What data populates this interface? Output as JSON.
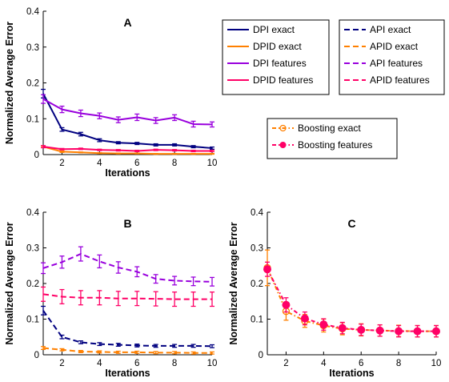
{
  "chart_data": [
    {
      "type": "line",
      "title": "A",
      "xlabel": "Iterations",
      "ylabel": "Normalized Average Error",
      "xlim": [
        1,
        10
      ],
      "ylim": [
        0,
        0.4
      ],
      "xticks": [
        2,
        4,
        6,
        8,
        10
      ],
      "yticks": [
        0,
        0.1,
        0.2,
        0.3,
        0.4
      ],
      "x": [
        1,
        2,
        3,
        4,
        5,
        6,
        7,
        8,
        9,
        10
      ],
      "series": [
        {
          "name": "DPI exact",
          "color": "#000080",
          "dash": "solid",
          "marker": "none",
          "values": [
            0.17,
            0.07,
            0.057,
            0.04,
            0.033,
            0.031,
            0.027,
            0.027,
            0.022,
            0.018
          ],
          "err": [
            0.012,
            0.005,
            0.005,
            0.004,
            0.003,
            0.003,
            0.003,
            0.003,
            0.003,
            0.003
          ]
        },
        {
          "name": "DPID exact",
          "color": "#ff8000",
          "dash": "solid",
          "marker": "none",
          "values": [
            0.022,
            0.008,
            0.006,
            0.004,
            0.003,
            0.003,
            0.002,
            0.002,
            0.002,
            0.002
          ],
          "err": [
            0.002,
            0.002,
            0.001,
            0.001,
            0.001,
            0.001,
            0.001,
            0.001,
            0.001,
            0.001
          ]
        },
        {
          "name": "DPI features",
          "color": "#9900dd",
          "dash": "solid",
          "marker": "none",
          "values": [
            0.155,
            0.126,
            0.115,
            0.108,
            0.097,
            0.104,
            0.095,
            0.103,
            0.085,
            0.084
          ],
          "err": [
            0.012,
            0.009,
            0.009,
            0.008,
            0.008,
            0.009,
            0.008,
            0.008,
            0.008,
            0.007
          ]
        },
        {
          "name": "DPID features",
          "color": "#ff0066",
          "dash": "solid",
          "marker": "none",
          "values": [
            0.022,
            0.015,
            0.016,
            0.013,
            0.012,
            0.01,
            0.013,
            0.012,
            0.01,
            0.01
          ],
          "err": [
            0.003,
            0.002,
            0.002,
            0.002,
            0.002,
            0.002,
            0.002,
            0.002,
            0.002,
            0.002
          ]
        }
      ]
    },
    {
      "type": "line",
      "title": "B",
      "xlabel": "Iterations",
      "ylabel": "Normalized Average Error",
      "xlim": [
        1,
        10
      ],
      "ylim": [
        0,
        0.4
      ],
      "xticks": [
        2,
        4,
        6,
        8,
        10
      ],
      "yticks": [
        0,
        0.1,
        0.2,
        0.3,
        0.4
      ],
      "x": [
        1,
        2,
        3,
        4,
        5,
        6,
        7,
        8,
        9,
        10
      ],
      "series": [
        {
          "name": "API exact",
          "color": "#000080",
          "dash": "dashed",
          "marker": "none",
          "values": [
            0.124,
            0.05,
            0.035,
            0.03,
            0.028,
            0.026,
            0.025,
            0.025,
            0.025,
            0.024
          ],
          "err": [
            0.012,
            0.005,
            0.004,
            0.004,
            0.004,
            0.004,
            0.004,
            0.004,
            0.004,
            0.004
          ]
        },
        {
          "name": "APID exact",
          "color": "#ff8000",
          "dash": "dashed",
          "marker": "none",
          "values": [
            0.019,
            0.014,
            0.009,
            0.008,
            0.007,
            0.007,
            0.006,
            0.006,
            0.005,
            0.005
          ],
          "err": [
            0.004,
            0.003,
            0.003,
            0.003,
            0.003,
            0.003,
            0.003,
            0.003,
            0.003,
            0.003
          ]
        },
        {
          "name": "API features",
          "color": "#9900dd",
          "dash": "dashed",
          "marker": "none",
          "values": [
            0.243,
            0.26,
            0.283,
            0.262,
            0.245,
            0.233,
            0.213,
            0.208,
            0.206,
            0.205
          ],
          "err": [
            0.015,
            0.017,
            0.02,
            0.018,
            0.016,
            0.014,
            0.012,
            0.012,
            0.012,
            0.012
          ]
        },
        {
          "name": "APID features",
          "color": "#ff0066",
          "dash": "dashed",
          "marker": "none",
          "values": [
            0.17,
            0.163,
            0.16,
            0.16,
            0.158,
            0.158,
            0.157,
            0.156,
            0.156,
            0.156
          ],
          "err": [
            0.02,
            0.02,
            0.02,
            0.02,
            0.02,
            0.02,
            0.02,
            0.02,
            0.02,
            0.02
          ]
        }
      ]
    },
    {
      "type": "line",
      "title": "C",
      "xlabel": "Iterations",
      "ylabel": "Normalized Average Error",
      "xlim": [
        1,
        10
      ],
      "ylim": [
        0,
        0.4
      ],
      "xticks": [
        2,
        4,
        6,
        8,
        10
      ],
      "yticks": [
        0,
        0.1,
        0.2,
        0.3,
        0.4
      ],
      "x": [
        1,
        2,
        3,
        4,
        5,
        6,
        7,
        8,
        9,
        10
      ],
      "series": [
        {
          "name": "Boosting exact",
          "color": "#ff8000",
          "dash": "dashdot",
          "marker": "open-circle",
          "values": [
            0.244,
            0.122,
            0.095,
            0.082,
            0.073,
            0.07,
            0.068,
            0.067,
            0.066,
            0.066
          ],
          "err": [
            0.05,
            0.025,
            0.018,
            0.018,
            0.017,
            0.017,
            0.016,
            0.016,
            0.016,
            0.016
          ]
        },
        {
          "name": "Boosting features",
          "color": "#ff0066",
          "dash": "dashdot",
          "marker": "filled-circle",
          "values": [
            0.24,
            0.14,
            0.102,
            0.085,
            0.075,
            0.07,
            0.068,
            0.066,
            0.066,
            0.066
          ],
          "err": [
            0.02,
            0.02,
            0.018,
            0.016,
            0.016,
            0.016,
            0.016,
            0.016,
            0.016,
            0.016
          ]
        }
      ]
    }
  ],
  "legends": [
    {
      "entries": [
        {
          "label": "DPI exact",
          "color": "#000080",
          "dash": "solid",
          "marker": "none"
        },
        {
          "label": "DPID exact",
          "color": "#ff8000",
          "dash": "solid",
          "marker": "none"
        },
        {
          "label": "DPI features",
          "color": "#9900dd",
          "dash": "solid",
          "marker": "none"
        },
        {
          "label": "DPID features",
          "color": "#ff0066",
          "dash": "solid",
          "marker": "none"
        }
      ]
    },
    {
      "entries": [
        {
          "label": "API exact",
          "color": "#000080",
          "dash": "dashed",
          "marker": "none"
        },
        {
          "label": "APID exact",
          "color": "#ff8000",
          "dash": "dashed",
          "marker": "none"
        },
        {
          "label": "API features",
          "color": "#9900dd",
          "dash": "dashed",
          "marker": "none"
        },
        {
          "label": "APID features",
          "color": "#ff0066",
          "dash": "dashed",
          "marker": "none"
        }
      ]
    },
    {
      "entries": [
        {
          "label": "Boosting exact",
          "color": "#ff8000",
          "dash": "dashdot",
          "marker": "open-circle"
        },
        {
          "label": "Boosting features",
          "color": "#ff0066",
          "dash": "dashdot",
          "marker": "filled-circle"
        }
      ]
    }
  ]
}
